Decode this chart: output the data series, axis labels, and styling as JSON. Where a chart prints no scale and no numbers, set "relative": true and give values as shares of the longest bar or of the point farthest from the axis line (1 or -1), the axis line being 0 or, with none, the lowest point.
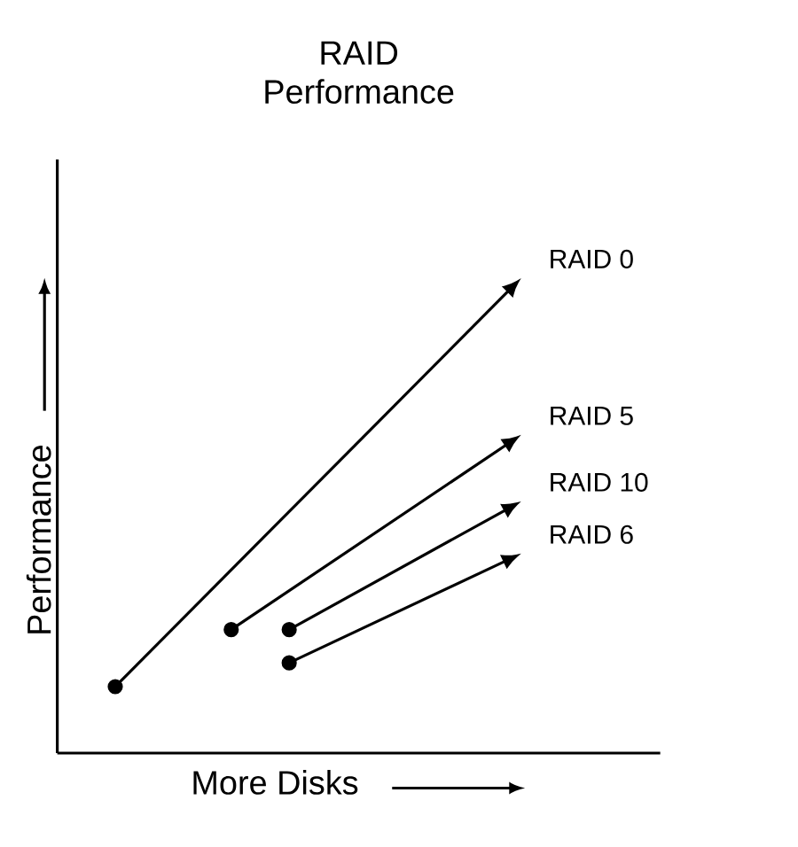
{
  "chart_data": {
    "type": "line",
    "title": "RAID Performance",
    "xlabel": "More Disks",
    "ylabel": "Performance",
    "relative": true,
    "marker": "circle",
    "line_style": "solid",
    "categories": [
      null,
      null,
      null,
      null,
      null,
      null,
      null,
      null
    ],
    "series": [
      {
        "name": "RAID 0",
        "color": "#000000",
        "values": [
          0.14,
          null,
          null,
          null,
          null,
          null,
          null,
          1
        ]
      },
      {
        "name": "RAID 5",
        "color": "#000000",
        "values": [
          null,
          null,
          0.26,
          null,
          null,
          null,
          null,
          0.67
        ]
      },
      {
        "name": "RAID 10",
        "color": "#000000",
        "values": [
          null,
          null,
          null,
          0.26,
          null,
          null,
          null,
          0.53
        ]
      },
      {
        "name": "RAID 6",
        "color": "#000000",
        "values": [
          null,
          null,
          null,
          0.19,
          null,
          null,
          null,
          0.42
        ]
      }
    ]
  }
}
